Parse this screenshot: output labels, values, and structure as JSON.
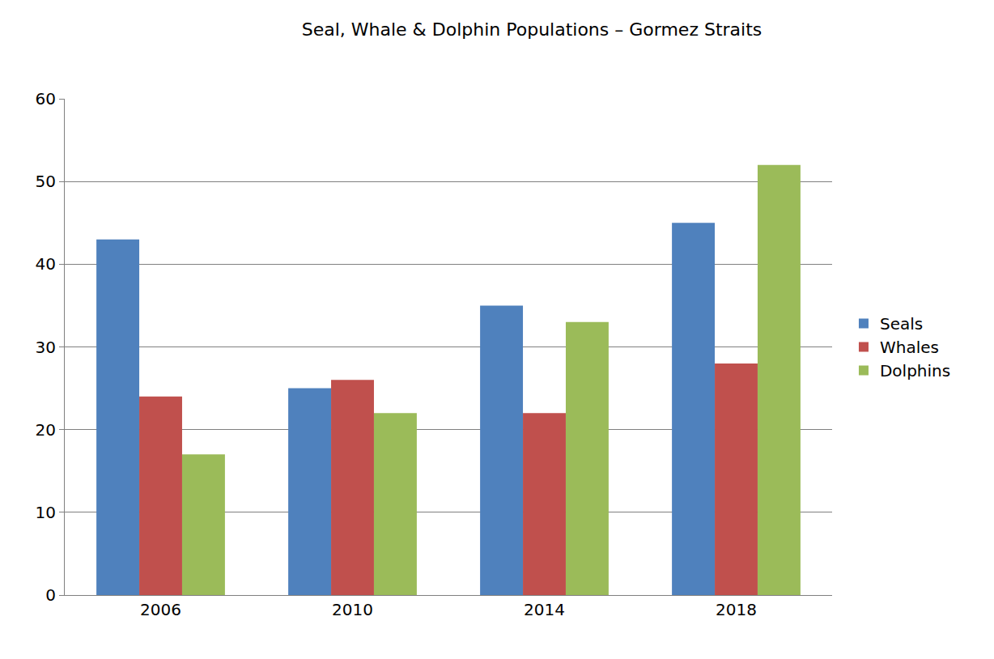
{
  "chart_data": {
    "type": "bar",
    "title": "Seal, Whale & Dolphin Populations – Gormez Straits",
    "categories": [
      "2006",
      "2010",
      "2014",
      "2018"
    ],
    "series": [
      {
        "name": "Seals",
        "color": "#4f81bd",
        "values": [
          43,
          25,
          35,
          45
        ]
      },
      {
        "name": "Whales",
        "color": "#c0504d",
        "values": [
          24,
          26,
          22,
          28
        ]
      },
      {
        "name": "Dolphins",
        "color": "#9bbb59",
        "values": [
          17,
          22,
          33,
          52
        ]
      }
    ],
    "ylim": [
      0,
      60
    ],
    "yticks": [
      0,
      10,
      20,
      30,
      40,
      50,
      60
    ],
    "grid": true,
    "legend": "right"
  }
}
